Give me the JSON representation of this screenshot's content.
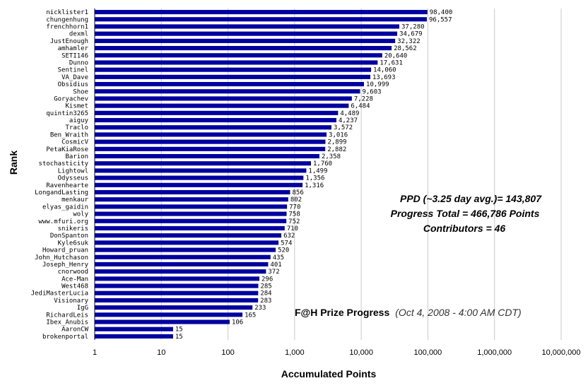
{
  "chart_data": {
    "type": "bar",
    "orientation": "horizontal",
    "x_scale": "log",
    "xlim": [
      1,
      10000000
    ],
    "x_ticks": [
      "1",
      "10",
      "100",
      "1,000",
      "10,000",
      "100,000",
      "1,000,000",
      "10,000,000"
    ],
    "xlabel": "Accumulated Points",
    "ylabel": "Rank",
    "bar_color": "#0000a0",
    "grid": "vertical",
    "categories": [
      "nicklister1",
      "chungenhung",
      "frenchhorn1",
      "dexml",
      "JustEnough",
      "amhamler",
      "SETI146",
      "Dunno",
      "Sentinel",
      "VA_Dave",
      "Obsidius",
      "Shoe",
      "Goryachev",
      "Kismet",
      "quintin3265",
      "aiguy",
      "Traclo",
      "Ben_Wraith",
      "CosmicV",
      "PetaKiaRose",
      "Barion",
      "stochasticity",
      "Lightowl",
      "Odysseus",
      "Ravenhearte",
      "LongandLasting",
      "menkaur",
      "elyas_gaidin",
      "woly",
      "www.mfuri.org",
      "snikeris",
      "DonSpanton",
      "Kyle6suk",
      "Howard_pruan",
      "John_Hutchason",
      "Joseph_Henry",
      "cnorwood",
      "Ace-Man",
      "West468",
      "JediMasterLucia",
      "Visionary",
      "IgG",
      "RichardLeis",
      "Ibex_Anubis",
      "AaronCW",
      "brokenportal"
    ],
    "values": [
      98400,
      96557,
      37280,
      34679,
      32322,
      28562,
      20640,
      17631,
      14060,
      13693,
      10999,
      9603,
      7228,
      6484,
      4489,
      4237,
      3572,
      3016,
      2899,
      2882,
      2358,
      1760,
      1499,
      1356,
      1316,
      856,
      802,
      770,
      758,
      752,
      710,
      632,
      574,
      520,
      435,
      401,
      372,
      296,
      285,
      284,
      283,
      233,
      165,
      106,
      15,
      15
    ],
    "value_labels": [
      "98,400",
      "96,557",
      "37,280",
      "34,679",
      "32,322",
      "28,562",
      "20,640",
      "17,631",
      "14,060",
      "13,693",
      "10,999",
      "9,603",
      "7,228",
      "6,484",
      "4,489",
      "4,237",
      "3,572",
      "3,016",
      "2,899",
      "2,882",
      "2,358",
      "1,760",
      "1,499",
      "1,356",
      "1,316",
      "856",
      "802",
      "770",
      "758",
      "752",
      "710",
      "632",
      "574",
      "520",
      "435",
      "401",
      "372",
      "296",
      "285",
      "284",
      "283",
      "233",
      "165",
      "106",
      "15",
      "15"
    ]
  },
  "annotations": {
    "ppd": "PPD (~3.25 day avg.)= 143,807",
    "progress_total": "Progress Total = 466,786 Points",
    "contributors": "Contributors = 46",
    "title_main": "F@H Prize Progress",
    "title_date": "(Oct 4, 2008 - 4:00 AM CDT)"
  }
}
